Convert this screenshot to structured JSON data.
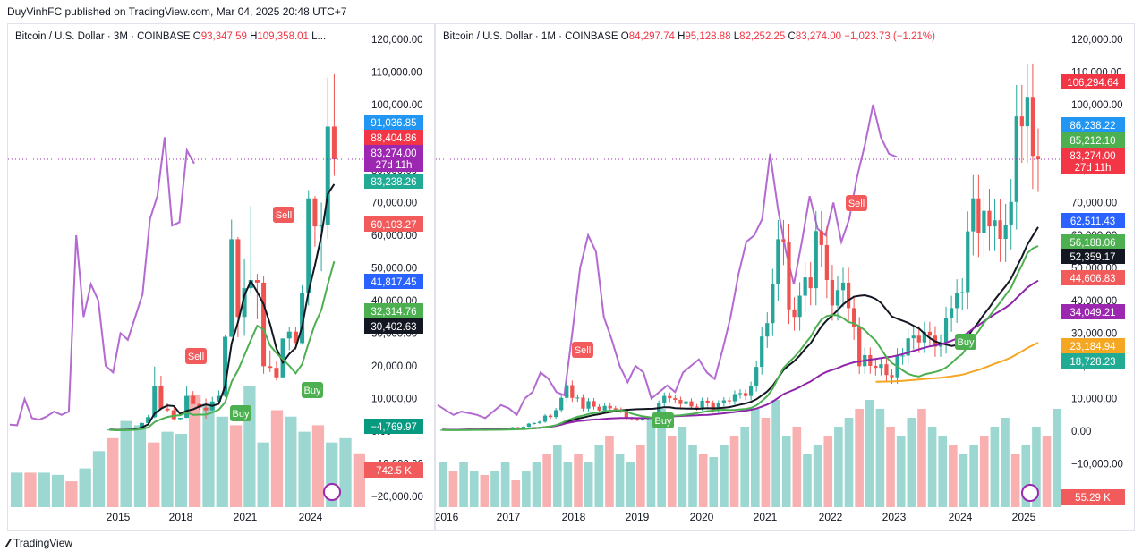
{
  "publisher": "DuyVinhFC published on TradingView.com, Mar 04, 2025 20:48 UTC+7",
  "footer": {
    "brand": "TradingView"
  },
  "colors": {
    "candle_up": "#26a69a",
    "candle_down": "#ef5350",
    "purple_line": "#b36ad1",
    "supertrend_green": "#4caf50",
    "supertrend_red": "#f15b5b",
    "black_ma": "#131722",
    "purple_ma": "#8e24aa",
    "orange_ma": "#f5a623",
    "blue_dots": "#2962ff"
  },
  "charts": [
    {
      "legend": {
        "title": "Bitcoin / U.S. Dollar · 3M · COINBASE",
        "o_key": "O",
        "o_val": "93,347.59",
        "h_key": "H",
        "h_val": "109,358.01",
        "more": "L..."
      },
      "y_ticks": [
        "120,000.00",
        "110,000.00",
        "100,000.00",
        "90,000.00",
        "80,000.00",
        "70,000.00",
        "60,000.00",
        "50,000.00",
        "40,000.00",
        "30,000.00",
        "20,000.00",
        "10,000.00",
        "0.00",
        "−10,000.00",
        "−20,000.00"
      ],
      "x_ticks": [
        "2015",
        "2018",
        "2021",
        "2024"
      ],
      "price_badges": [
        {
          "text": "91,036.85",
          "color": "#2196f3"
        },
        {
          "text": "88,404.86",
          "color": "#f23645"
        },
        {
          "text": "83,274.00",
          "color": "#9c27b0",
          "sub": "27d 11h"
        },
        {
          "text": "83,238.26",
          "color": "#22ab94"
        },
        {
          "text": "60,103.27",
          "color": "#f15b5b"
        },
        {
          "text": "41,817.45",
          "color": "#2962ff"
        },
        {
          "text": "32,314.76",
          "color": "#4caf50"
        },
        {
          "text": "30,402.63",
          "color": "#131722"
        },
        {
          "text": "−4,769.97",
          "color": "#089981"
        },
        {
          "text": "742.5 K",
          "color": "#f15b5b"
        }
      ],
      "signals": [
        {
          "label": "Sell",
          "kind": "sell"
        },
        {
          "label": "Buy",
          "kind": "buy"
        },
        {
          "label": "Sell",
          "kind": "sell"
        },
        {
          "label": "Buy",
          "kind": "buy"
        }
      ]
    },
    {
      "legend": {
        "title": "Bitcoin / U.S. Dollar · 1M · COINBASE",
        "o_key": "O",
        "o_val": "84,297.74",
        "h_key": "H",
        "h_val": "95,128.88",
        "l_key": "L",
        "l_val": "82,252.25",
        "c_key": "C",
        "c_val": "83,274.00",
        "chg": "−1,023.73 (−1.21%)"
      },
      "y_ticks": [
        "120,000.00",
        "110,000.00",
        "100,000.00",
        "90,000.00",
        "80,000.00",
        "70,000.00",
        "60,000.00",
        "50,000.00",
        "40,000.00",
        "30,000.00",
        "20,000.00",
        "10,000.00",
        "0.00",
        "−10,000.00",
        "−20,000.00"
      ],
      "x_ticks": [
        "2016",
        "2017",
        "2018",
        "2019",
        "2020",
        "2021",
        "2022",
        "2023",
        "2024",
        "2025"
      ],
      "price_badges": [
        {
          "text": "106,294.64",
          "color": "#f23645"
        },
        {
          "text": "86,238.22",
          "color": "#2196f3"
        },
        {
          "text": "85,212.10",
          "color": "#4caf50"
        },
        {
          "text": "83,274.00",
          "color": "#f23645",
          "sub": "27d 11h"
        },
        {
          "text": "62,511.43",
          "color": "#2962ff"
        },
        {
          "text": "56,188.06",
          "color": "#4caf50"
        },
        {
          "text": "52,359.17",
          "color": "#131722"
        },
        {
          "text": "44,606.83",
          "color": "#f15b5b"
        },
        {
          "text": "34,049.21",
          "color": "#9c27b0"
        },
        {
          "text": "23,184.94",
          "color": "#f5a623"
        },
        {
          "text": "18,728.23",
          "color": "#22ab94"
        },
        {
          "text": "55.29 K",
          "color": "#f15b5b"
        }
      ],
      "signals": [
        {
          "label": "Sell",
          "kind": "sell"
        },
        {
          "label": "Buy",
          "kind": "buy"
        },
        {
          "label": "Sell",
          "kind": "sell"
        },
        {
          "label": "Buy",
          "kind": "buy"
        }
      ]
    }
  ],
  "chart_data": [
    {
      "type": "candlestick",
      "title": "Bitcoin / U.S. Dollar · 3M · COINBASE",
      "ylim": [
        -20000,
        120000
      ],
      "candles_ohlc": [
        [
          400,
          600,
          300,
          500
        ],
        [
          500,
          550,
          200,
          250
        ],
        [
          250,
          450,
          200,
          420
        ],
        [
          420,
          750,
          400,
          610
        ],
        [
          610,
          1000,
          550,
          960
        ],
        [
          960,
          2600,
          950,
          2500
        ],
        [
          2500,
          5000,
          1900,
          4300
        ],
        [
          4300,
          19800,
          4000,
          13800
        ],
        [
          13800,
          17000,
          6500,
          6900
        ],
        [
          6900,
          8500,
          5800,
          6400
        ],
        [
          6400,
          7400,
          3200,
          3700
        ],
        [
          3700,
          4100,
          3300,
          4100
        ],
        [
          4100,
          13900,
          4000,
          10800
        ],
        [
          10800,
          12300,
          9300,
          8300
        ],
        [
          8300,
          8500,
          6500,
          7200
        ],
        [
          7200,
          10000,
          3800,
          6400
        ],
        [
          6400,
          10500,
          6200,
          9100
        ],
        [
          9100,
          12500,
          9000,
          10800
        ],
        [
          10800,
          29300,
          10400,
          28900
        ],
        [
          28900,
          64800,
          28800,
          58800
        ],
        [
          58800,
          59500,
          28800,
          35000
        ],
        [
          35000,
          52900,
          29200,
          43800
        ],
        [
          43800,
          69000,
          42000,
          46300
        ],
        [
          46300,
          48200,
          34300,
          45500
        ],
        [
          45500,
          47500,
          17600,
          19900
        ],
        [
          19900,
          24700,
          18100,
          19400
        ],
        [
          19400,
          21500,
          15500,
          16500
        ],
        [
          16500,
          25200,
          16500,
          28400
        ],
        [
          28400,
          31800,
          24800,
          30500
        ],
        [
          30500,
          31800,
          24900,
          27000
        ],
        [
          27000,
          44700,
          26500,
          42300
        ],
        [
          42300,
          73800,
          38500,
          71300
        ],
        [
          71300,
          72000,
          56500,
          62700
        ],
        [
          62700,
          70000,
          49000,
          63300
        ],
        [
          63300,
          108300,
          58900,
          93300
        ],
        [
          93300,
          109358,
          78200,
          83274
        ]
      ],
      "purple_line": [
        2000,
        1800,
        9800,
        4000,
        3500,
        4500,
        6000,
        5000,
        6000,
        60000,
        35000,
        45000,
        40000,
        20000,
        18000,
        30000,
        28000,
        35000,
        42000,
        65000,
        72000,
        90000,
        63000,
        64000,
        86000,
        82000
      ],
      "volume_k": [
        160,
        160,
        160,
        150,
        120,
        180,
        260,
        320,
        400,
        380,
        300,
        350,
        340,
        520,
        480,
        420,
        380,
        560,
        300,
        450,
        420,
        350,
        380,
        300,
        320,
        250
      ],
      "signals": [
        {
          "label": "Sell",
          "index": 8
        },
        {
          "label": "Buy",
          "index": 21
        },
        {
          "label": "Sell",
          "index": 26
        },
        {
          "label": "Buy",
          "index": 33
        }
      ],
      "last_price": 83274
    },
    {
      "type": "candlestick",
      "title": "Bitcoin / U.S. Dollar · 1M · COINBASE",
      "ylim": [
        -20000,
        120000
      ],
      "o": 84297.74,
      "h": 95128.88,
      "l": 82252.25,
      "c": 83274.0,
      "change": "−1,023.73 (−1.21%)",
      "monthly_closes": [
        430,
        370,
        410,
        430,
        530,
        670,
        620,
        570,
        610,
        700,
        750,
        960,
        970,
        1190,
        1080,
        1350,
        2300,
        2480,
        2880,
        4760,
        4340,
        6470,
        10200,
        14100,
        10200,
        10300,
        6920,
        9210,
        7500,
        6360,
        7730,
        7020,
        6620,
        6310,
        4010,
        3690,
        3440,
        3840,
        4100,
        5300,
        8570,
        10800,
        10100,
        9600,
        8300,
        9150,
        7550,
        7200,
        9350,
        8550,
        6420,
        8630,
        9450,
        9140,
        11350,
        11660,
        10780,
        13810,
        19700,
        28990,
        33100,
        45200,
        58800,
        57800,
        37300,
        35000,
        41500,
        47100,
        43800,
        61300,
        57000,
        46300,
        38500,
        43200,
        45500,
        37700,
        31800,
        19900,
        23300,
        20000,
        19400,
        20500,
        17200,
        16500,
        23100,
        23150,
        28450,
        29250,
        27200,
        30450,
        29250,
        25900,
        27000,
        34650,
        37700,
        42300,
        42600,
        61200,
        71300,
        60600,
        67500,
        62700,
        64600,
        58900,
        63300,
        70200,
        96400,
        93400,
        102400,
        84300,
        83274
      ],
      "purple_line": [
        8000,
        6500,
        5000,
        6000,
        5500,
        5000,
        4000,
        6000,
        8000,
        7000,
        5000,
        10000,
        12000,
        18000,
        16000,
        12000,
        11000,
        30000,
        50000,
        60000,
        55000,
        35000,
        28000,
        20000,
        15000,
        20000,
        18000,
        10000,
        12000,
        14000,
        12000,
        18000,
        20000,
        22000,
        18000,
        16000,
        25000,
        35000,
        48000,
        58000,
        60000,
        65000,
        85000,
        68000,
        55000,
        45000,
        58000,
        72000,
        62000,
        60000,
        70000,
        58000,
        65000,
        78000,
        88000,
        100000,
        90000,
        85000,
        84000
      ],
      "volume_k": [
        25,
        20,
        25,
        20,
        18,
        20,
        25,
        15,
        20,
        25,
        30,
        35,
        25,
        30,
        25,
        35,
        40,
        30,
        25,
        35,
        50,
        55,
        40,
        45,
        35,
        30,
        28,
        35,
        40,
        45,
        55,
        50,
        60,
        40,
        45,
        30,
        35,
        40,
        45,
        50,
        55,
        60,
        55,
        45,
        40,
        50,
        55,
        45,
        40,
        35,
        30,
        35,
        40,
        45,
        50,
        30,
        35,
        45,
        40,
        55
      ],
      "signals": [
        {
          "label": "Sell",
          "date": "2018-02"
        },
        {
          "label": "Buy",
          "date": "2019-05"
        },
        {
          "label": "Sell",
          "date": "2022-05"
        },
        {
          "label": "Buy",
          "date": "2023-10"
        }
      ],
      "last_price": 83274
    }
  ]
}
